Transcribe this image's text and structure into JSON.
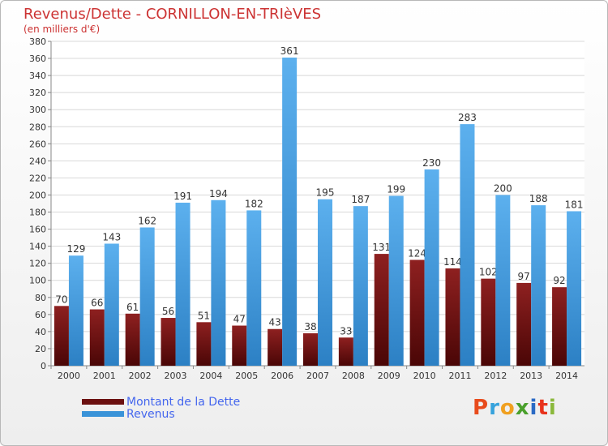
{
  "title": "Revenus/Dette - CORNILLON-EN-TRIèVES",
  "subtitle": "(en milliers d'€)",
  "legend": [
    {
      "label": "Montant de la Dette",
      "color": "#6b1010"
    },
    {
      "label": "Revenus",
      "color": "#3a93d8"
    }
  ],
  "logo": {
    "text": "Proxiti",
    "colors": [
      "#e84b1c",
      "#36a2dc",
      "#f0a020",
      "#4aa02c",
      "#2a6ac4",
      "#e8321c",
      "#8ab83a"
    ]
  },
  "chart_data": {
    "type": "bar",
    "categories": [
      "2000",
      "2001",
      "2002",
      "2003",
      "2004",
      "2005",
      "2006",
      "2007",
      "2008",
      "2009",
      "2010",
      "2011",
      "2012",
      "2013",
      "2014"
    ],
    "series": [
      {
        "name": "Montant de la Dette",
        "values": [
          70,
          66,
          61,
          56,
          51,
          47,
          43,
          38,
          33,
          131,
          124,
          114,
          102,
          97,
          92
        ]
      },
      {
        "name": "Revenus",
        "values": [
          129,
          143,
          162,
          191,
          194,
          182,
          361,
          195,
          187,
          199,
          230,
          283,
          200,
          188,
          181
        ]
      }
    ],
    "ylim": [
      0,
      380
    ],
    "ytick_step": 20,
    "grid": true
  }
}
